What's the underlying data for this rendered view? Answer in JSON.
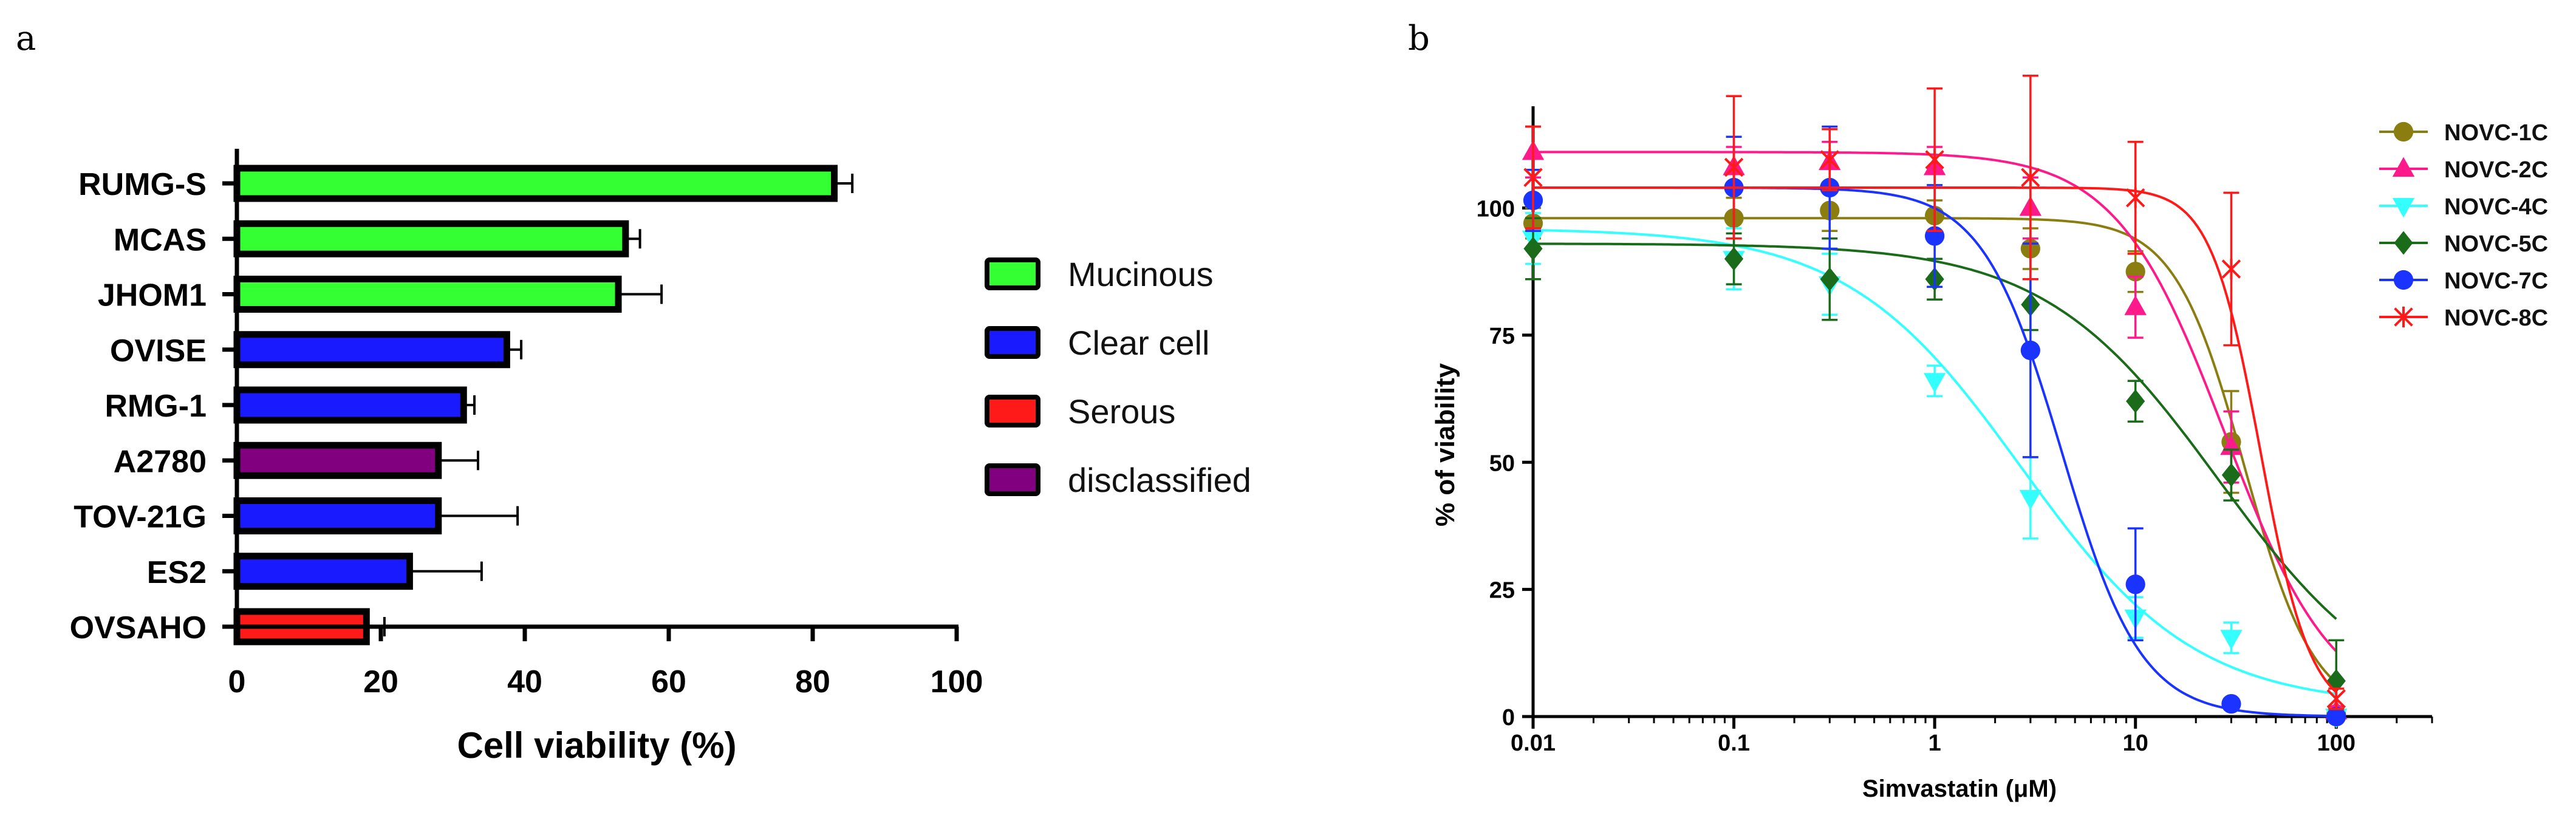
{
  "panels": {
    "a": "a",
    "b": "b"
  },
  "colors": {
    "Mucinous": "#33ff33",
    "Clear cell": "#1a1aff",
    "Serous": "#ff1a1a",
    "disclassified": "#800080"
  },
  "chart_data": [
    {
      "type": "bar",
      "orientation": "horizontal",
      "title": "",
      "xlabel": "Cell viability (%)",
      "ylabel": "",
      "xlim": [
        0,
        100
      ],
      "xticks": [
        0,
        20,
        40,
        60,
        80,
        100
      ],
      "legend": [
        "Mucinous",
        "Clear cell",
        "Serous",
        "disclassified"
      ],
      "legend_position": "right",
      "categories": [
        "RUMG-S",
        "MCAS",
        "JHOM1",
        "OVISE",
        "RMG-1",
        "A2780",
        "TOV-21G",
        "ES2",
        "OVSAHO"
      ],
      "values": [
        83,
        54,
        53,
        37.5,
        31.5,
        28,
        28,
        24,
        18
      ],
      "errors": [
        2.5,
        2,
        6,
        2,
        1.5,
        5.5,
        11,
        10,
        2.5
      ],
      "groups": [
        "Mucinous",
        "Mucinous",
        "Mucinous",
        "Clear cell",
        "Clear cell",
        "disclassified",
        "Clear cell",
        "Clear cell",
        "Serous"
      ]
    },
    {
      "type": "line",
      "subtype": "dose-response",
      "title": "",
      "xlabel": "Simvastatin (μM)",
      "ylabel": "% of viability",
      "xscale": "log",
      "xlim": [
        0.01,
        300
      ],
      "ylim": [
        0,
        120
      ],
      "xticks": [
        0.01,
        0.1,
        1,
        10,
        100
      ],
      "xtick_labels": [
        "0.01",
        "0.1",
        "1",
        "10",
        "100"
      ],
      "yticks": [
        0,
        25,
        50,
        75,
        100
      ],
      "legend_position": "right",
      "x": [
        0.01,
        0.1,
        0.3,
        1,
        3,
        10,
        30,
        100
      ],
      "series": [
        {
          "name": "NOVC-1C",
          "color": "#8b7d10",
          "marker": "circle",
          "values": [
            97,
            98,
            99.5,
            98.5,
            92,
            87.5,
            54,
            0.5
          ],
          "errors": [
            3,
            4,
            4,
            3,
            4,
            4,
            10,
            1
          ],
          "fit": {
            "top": 98,
            "bottom": 0,
            "ec50": 35,
            "hill": 2.5
          }
        },
        {
          "name": "NOVC-2C",
          "color": "#ff1a8c",
          "marker": "triangle-up",
          "values": [
            111,
            108,
            109,
            108,
            100,
            80.5,
            53,
            1
          ],
          "errors": [
            5,
            4,
            4,
            4,
            6,
            6,
            7,
            1
          ],
          "fit": {
            "top": 111,
            "bottom": 0,
            "ec50": 28,
            "hill": 1.6
          }
        },
        {
          "name": "NOVC-4C",
          "color": "#33ffff",
          "marker": "triangle-down",
          "values": [
            94,
            90,
            85,
            66,
            43,
            19.5,
            15.5,
            0
          ],
          "errors": [
            5,
            6,
            6,
            3,
            8,
            4,
            3,
            1
          ],
          "fit": {
            "top": 96,
            "bottom": 2,
            "ec50": 2.7,
            "hill": 1.0
          }
        },
        {
          "name": "NOVC-5C",
          "color": "#1a6b1a",
          "marker": "diamond",
          "values": [
            92,
            90,
            86,
            86,
            81,
            62,
            47.5,
            7
          ],
          "errors": [
            6,
            5,
            8,
            4,
            5,
            4,
            5,
            8
          ],
          "fit": {
            "top": 93,
            "bottom": 0,
            "ec50": 26,
            "hill": 1.0
          }
        },
        {
          "name": "NOVC-7C",
          "color": "#1a33ff",
          "marker": "circle",
          "values": [
            101.5,
            104,
            104,
            94.5,
            72,
            26,
            2.5,
            0
          ],
          "errors": [
            6,
            10,
            12,
            10,
            21,
            11,
            1,
            1
          ],
          "fit": {
            "top": 104,
            "bottom": 0,
            "ec50": 4.3,
            "hill": 2.2
          }
        },
        {
          "name": "NOVC-8C",
          "color": "#ff1a1a",
          "marker": "star",
          "values": [
            106,
            108,
            109.5,
            109.5,
            106,
            102,
            88,
            3.5
          ],
          "errors": [
            10,
            14,
            6,
            14,
            20,
            11,
            15,
            2
          ],
          "fit": {
            "top": 104,
            "bottom": 0,
            "ec50": 42,
            "hill": 3.5
          }
        }
      ]
    }
  ]
}
